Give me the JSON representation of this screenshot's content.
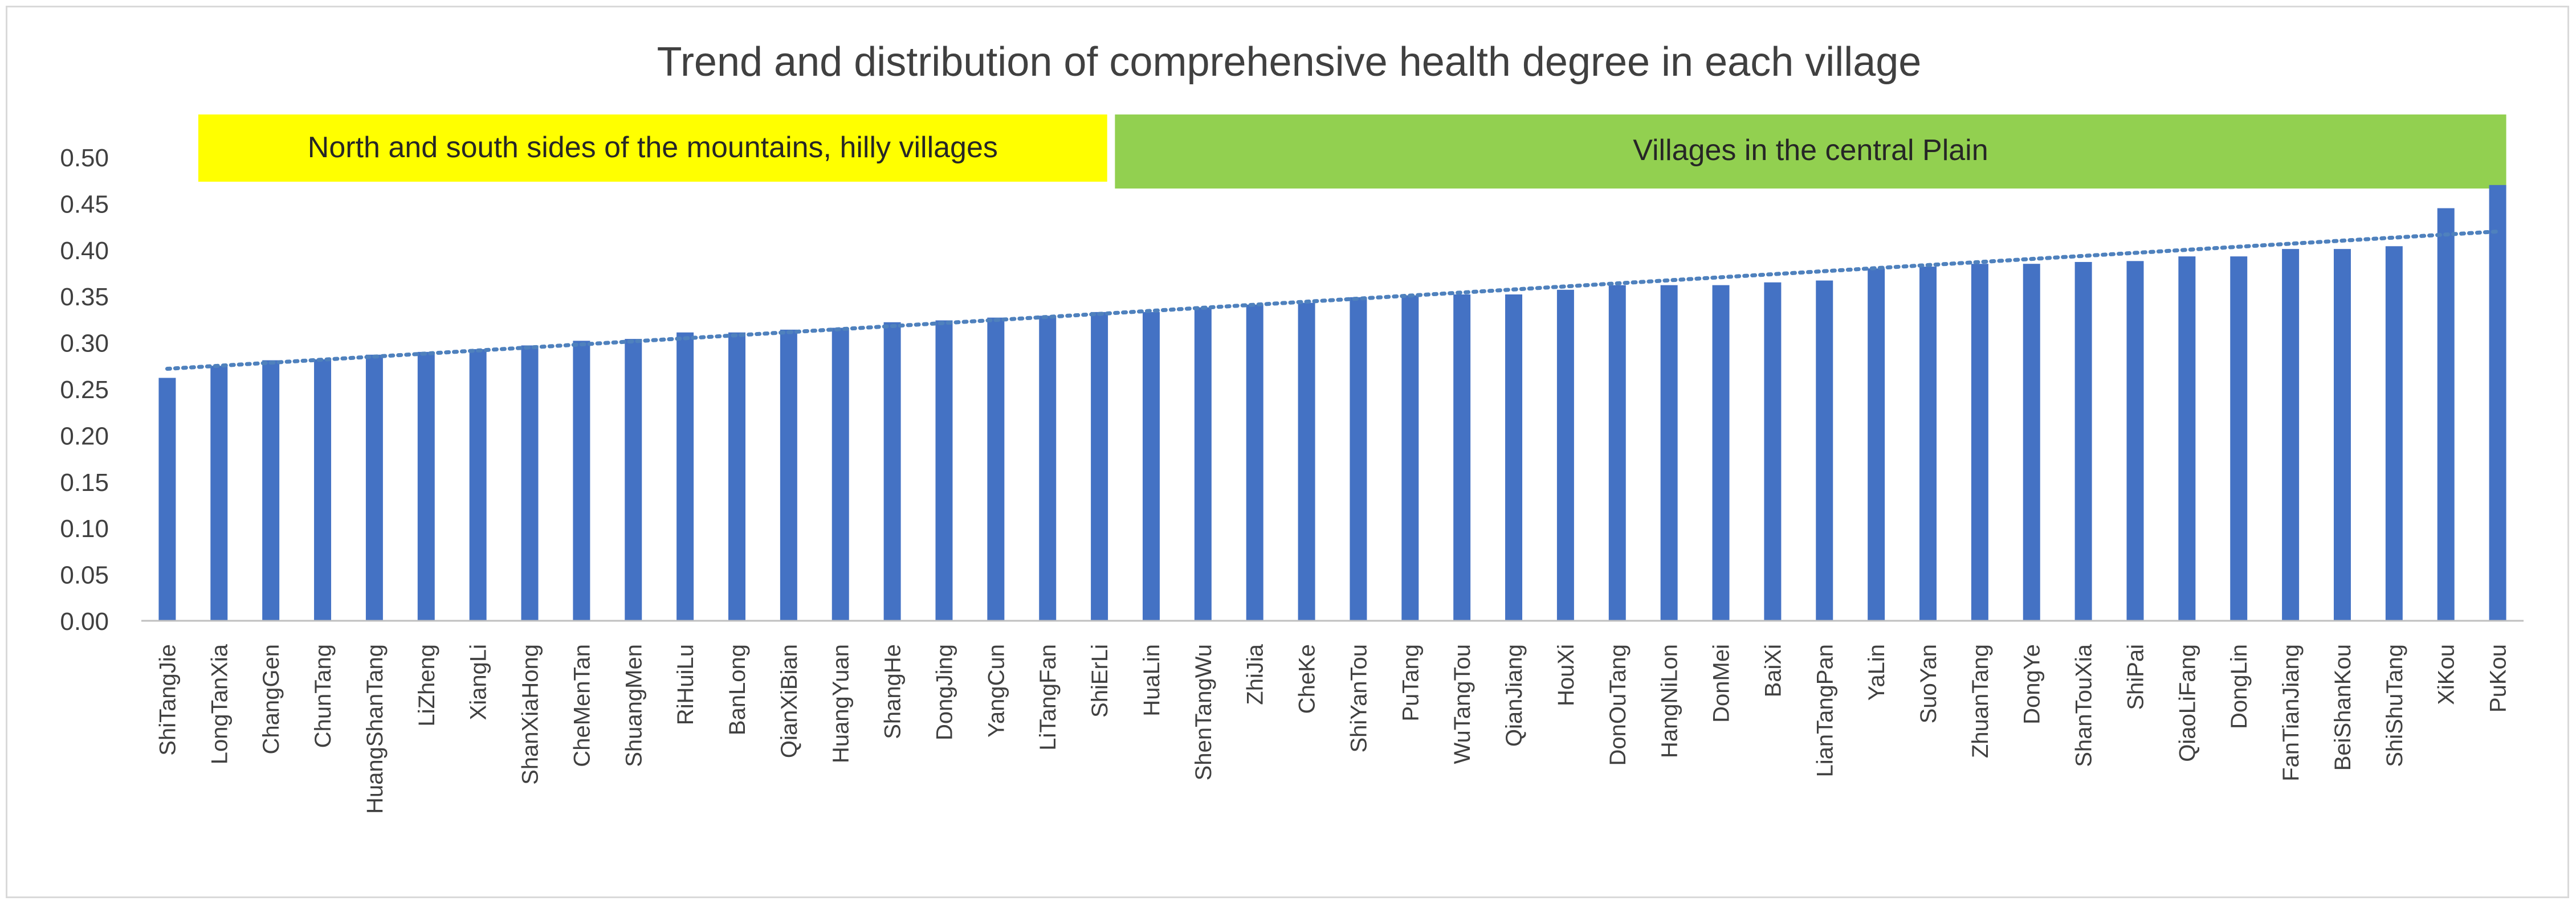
{
  "chart_data": {
    "type": "bar",
    "title": "Trend and distribution of comprehensive health degree in each village",
    "xlabel": "",
    "ylabel": "",
    "ylim": [
      0,
      0.5
    ],
    "yticks": [
      "0.00",
      "0.05",
      "0.10",
      "0.15",
      "0.20",
      "0.25",
      "0.30",
      "0.35",
      "0.40",
      "0.45",
      "0.50"
    ],
    "grid": false,
    "legend": "none",
    "trendline": {
      "type": "linear",
      "style": "dotted"
    },
    "annotations": [
      {
        "text": "North and south sides of the mountains, hilly villages",
        "color": "#ffff00",
        "from_category": "LongTanXia",
        "to_category": "ShiErLi"
      },
      {
        "text": "Villages in the central Plain",
        "color": "#92d050",
        "from_category": "HuaLin",
        "to_category": "PuKou"
      }
    ],
    "categories": [
      "ShiTangJie",
      "LongTanXia",
      "ChangGen",
      "ChunTang",
      "HuangShanTang",
      "LiZheng",
      "XiangLi",
      "ShanXiaHong",
      "CheMenTan",
      "ShuangMen",
      "RiHuiLu",
      "BanLong",
      "QianXiBian",
      "HuangYuan",
      "ShangHe",
      "DongJing",
      "YangCun",
      "LiTangFan",
      "ShiErLi",
      "HuaLin",
      "ShenTangWu",
      "ZhiJia",
      "CheKe",
      "ShiYanTou",
      "PuTang",
      "WuTangTou",
      "QianJiang",
      "HouXi",
      "DonOuTang",
      "HangNiLon",
      "DonMei",
      "BaiXi",
      "LianTangPan",
      "YaLin",
      "SuoYan",
      "ZhuanTang",
      "DongYe",
      "ShanTouXia",
      "ShiPai",
      "QiaoLiFang",
      "DongLin",
      "FanTianJiang",
      "BeiShanKou",
      "ShiShuTang",
      "XiKou",
      "PuKou"
    ],
    "series": [
      {
        "name": "Comprehensive health degree",
        "color": "#4472c4",
        "values": [
          0.262,
          0.275,
          0.281,
          0.282,
          0.287,
          0.29,
          0.293,
          0.297,
          0.302,
          0.304,
          0.311,
          0.311,
          0.314,
          0.316,
          0.322,
          0.324,
          0.327,
          0.329,
          0.333,
          0.333,
          0.338,
          0.341,
          0.343,
          0.349,
          0.351,
          0.352,
          0.352,
          0.357,
          0.362,
          0.362,
          0.362,
          0.365,
          0.367,
          0.38,
          0.382,
          0.385,
          0.385,
          0.387,
          0.388,
          0.393,
          0.393,
          0.401,
          0.401,
          0.404,
          0.445,
          0.47
        ]
      }
    ]
  }
}
